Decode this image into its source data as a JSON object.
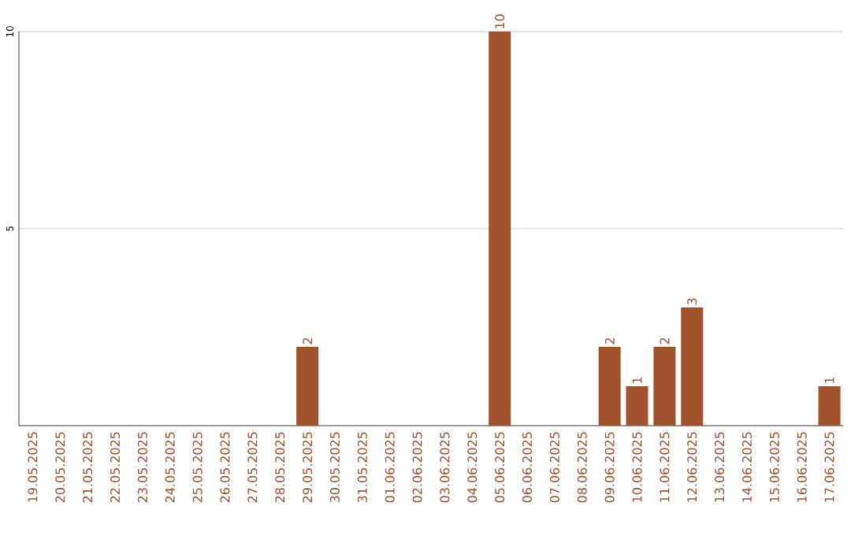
{
  "chart_data": {
    "type": "bar",
    "categories": [
      "19.05.2025",
      "20.05.2025",
      "21.05.2025",
      "22.05.2025",
      "23.05.2025",
      "24.05.2025",
      "25.05.2025",
      "26.05.2025",
      "27.05.2025",
      "28.05.2025",
      "29.05.2025",
      "30.05.2025",
      "31.05.2025",
      "01.06.2025",
      "02.06.2025",
      "03.06.2025",
      "04.06.2025",
      "05.06.2025",
      "06.06.2025",
      "07.06.2025",
      "08.06.2025",
      "09.06.2025",
      "10.06.2025",
      "11.06.2025",
      "12.06.2025",
      "13.06.2025",
      "14.06.2025",
      "15.06.2025",
      "16.06.2025",
      "17.06.2025"
    ],
    "values": [
      0,
      0,
      0,
      0,
      0,
      0,
      0,
      0,
      0,
      0,
      2,
      0,
      0,
      0,
      0,
      0,
      0,
      10,
      0,
      0,
      0,
      2,
      1,
      2,
      3,
      0,
      0,
      0,
      0,
      1
    ],
    "value_labels": [
      null,
      null,
      null,
      null,
      null,
      null,
      null,
      null,
      null,
      null,
      "2",
      null,
      null,
      null,
      null,
      null,
      null,
      "10",
      null,
      null,
      null,
      "2",
      "1",
      "2",
      "3",
      null,
      null,
      null,
      null,
      "1"
    ],
    "color": "#a0522d",
    "ylim": [
      0,
      10
    ],
    "yticks": [
      5,
      10
    ],
    "grid": "y"
  }
}
